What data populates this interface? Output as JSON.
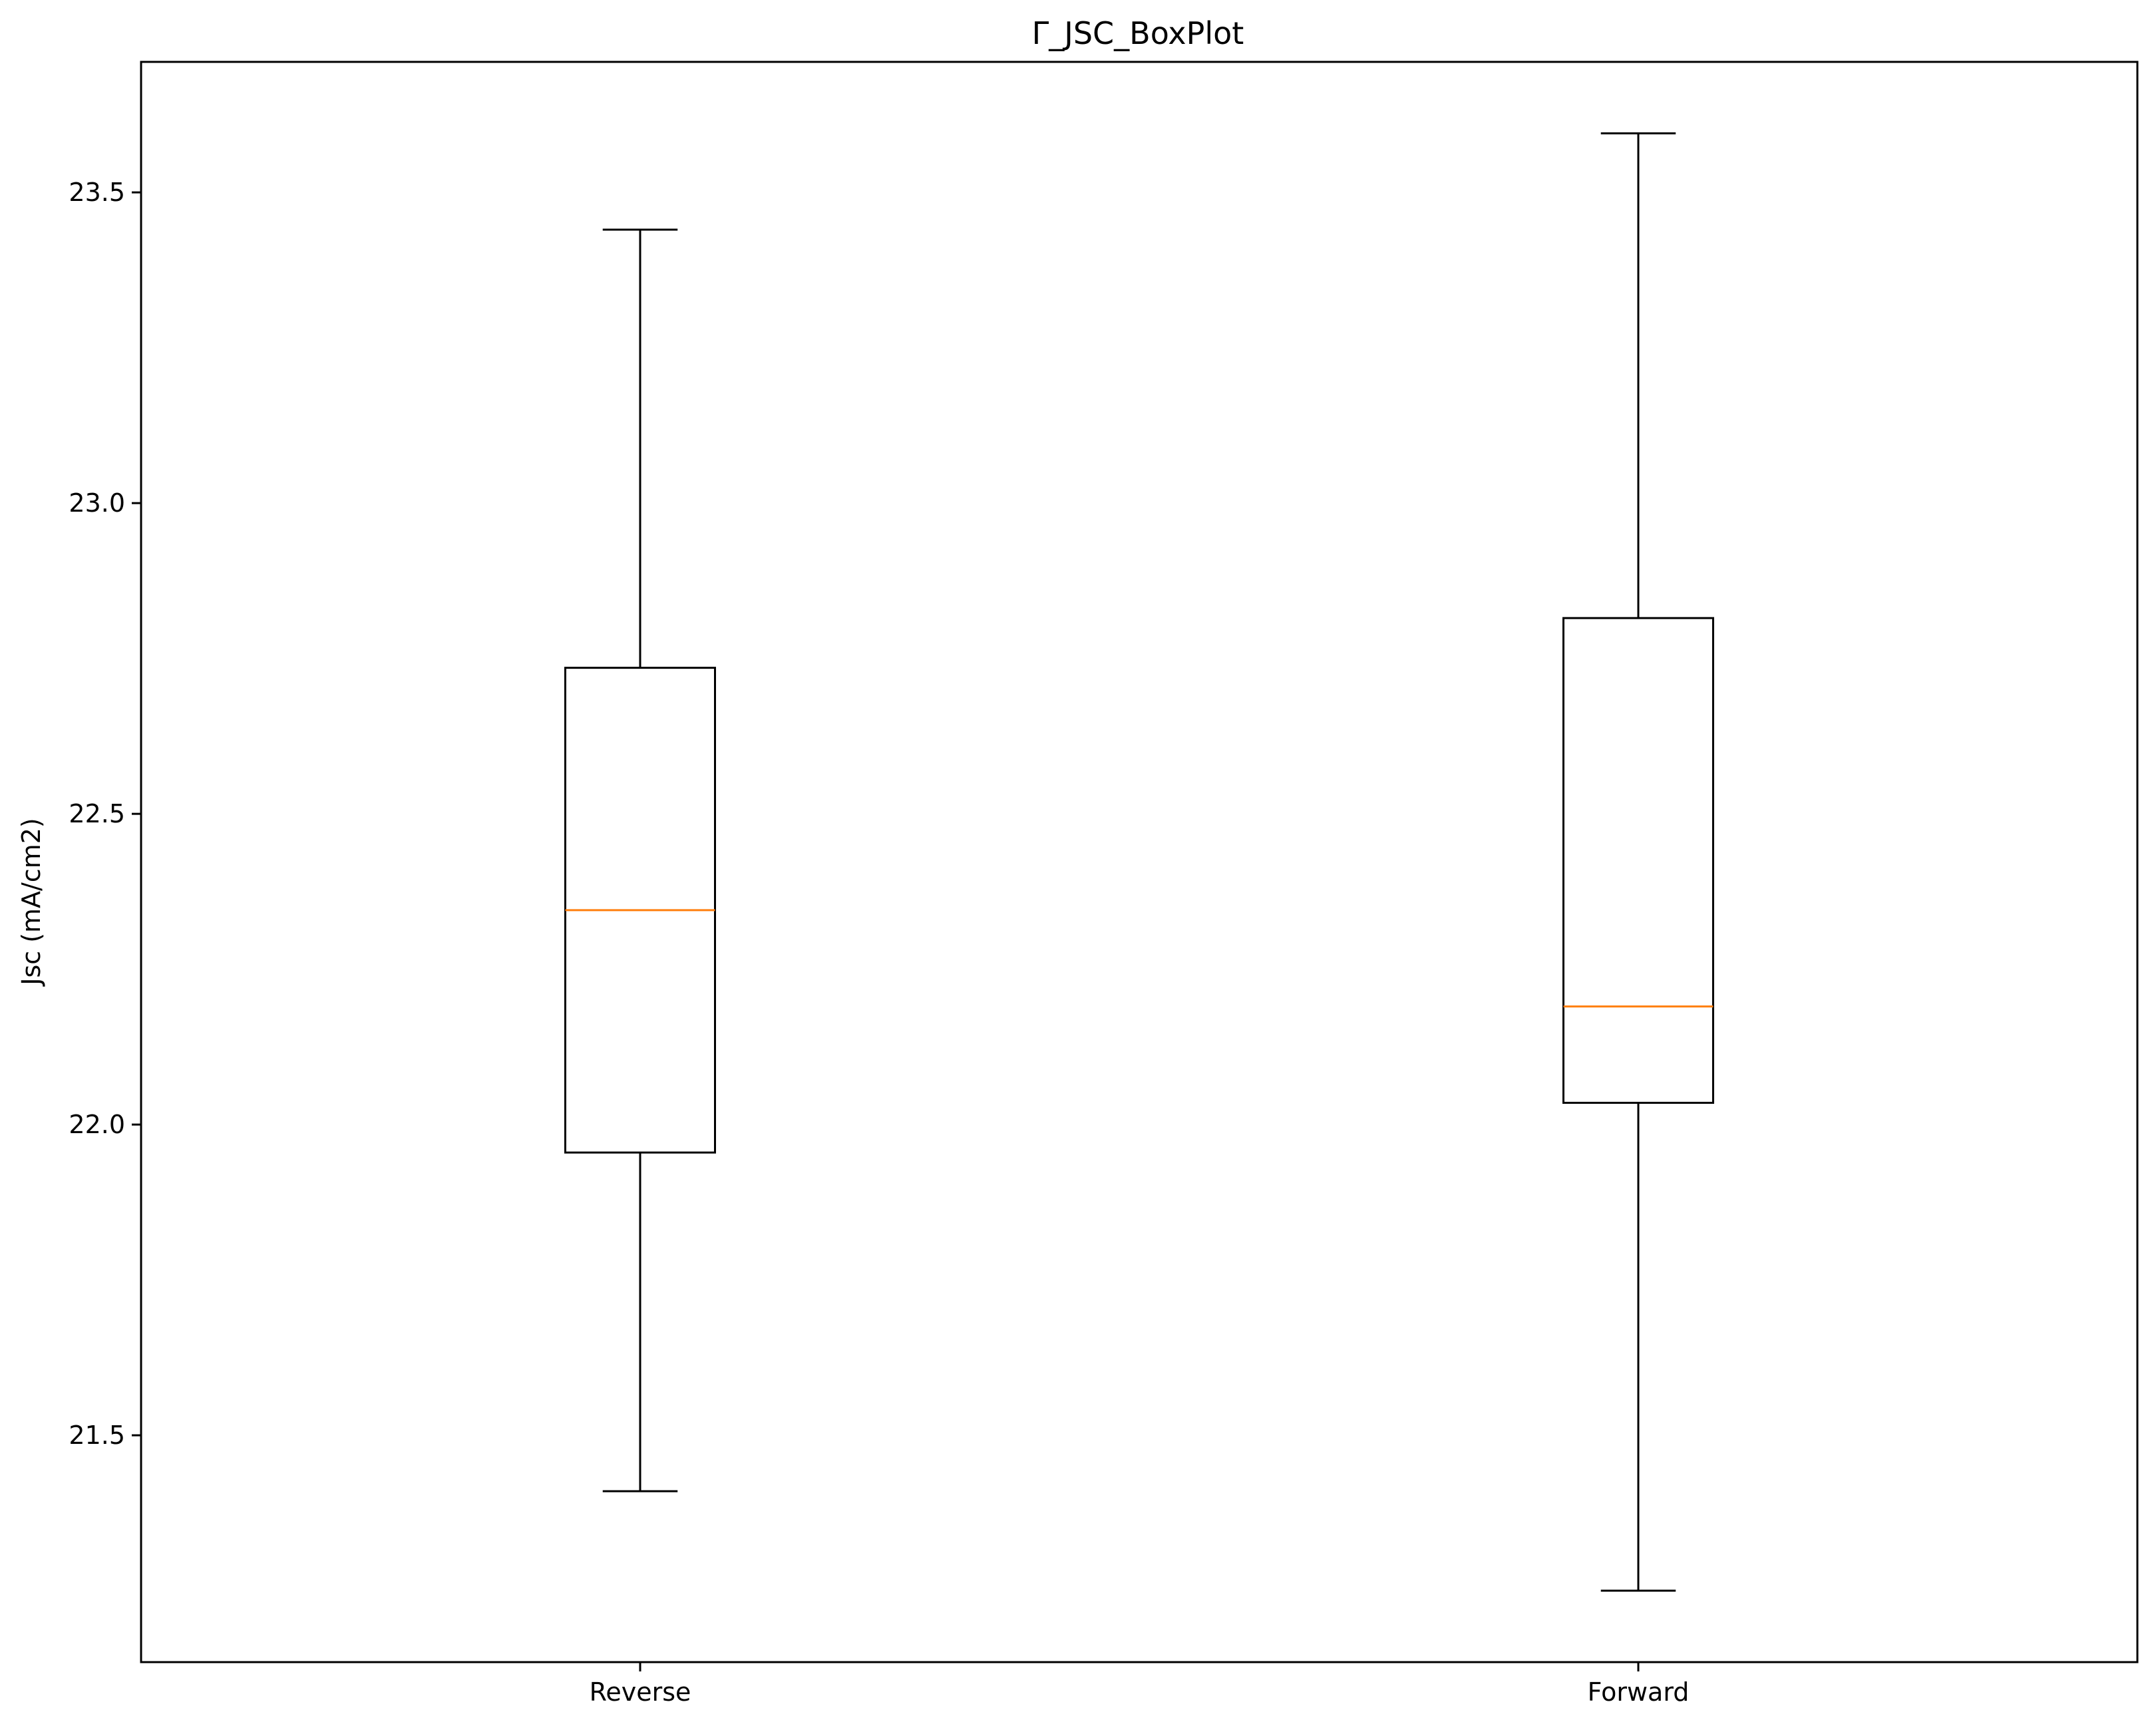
{
  "chart_data": {
    "type": "boxplot",
    "title": "Γ_JSC_BoxPlot",
    "xlabel": "",
    "ylabel": "Jsc (mA/cm2)",
    "categories": [
      "Reverse",
      "Forward"
    ],
    "boxes": [
      {
        "category": "Reverse",
        "whisker_low": 21.41,
        "q1": 21.955,
        "median": 22.345,
        "q3": 22.735,
        "whisker_high": 23.44
      },
      {
        "category": "Forward",
        "whisker_low": 21.25,
        "q1": 22.035,
        "median": 22.19,
        "q3": 22.815,
        "whisker_high": 23.595
      }
    ],
    "ylim": [
      21.135,
      23.71
    ],
    "yticks": [
      21.5,
      22.0,
      22.5,
      23.0,
      23.5
    ],
    "ytick_labels": [
      "21.5",
      "22.0",
      "22.5",
      "23.0",
      "23.5"
    ],
    "grid": false,
    "colors": {
      "box": "#000000",
      "median": "#ff7f0e"
    }
  }
}
